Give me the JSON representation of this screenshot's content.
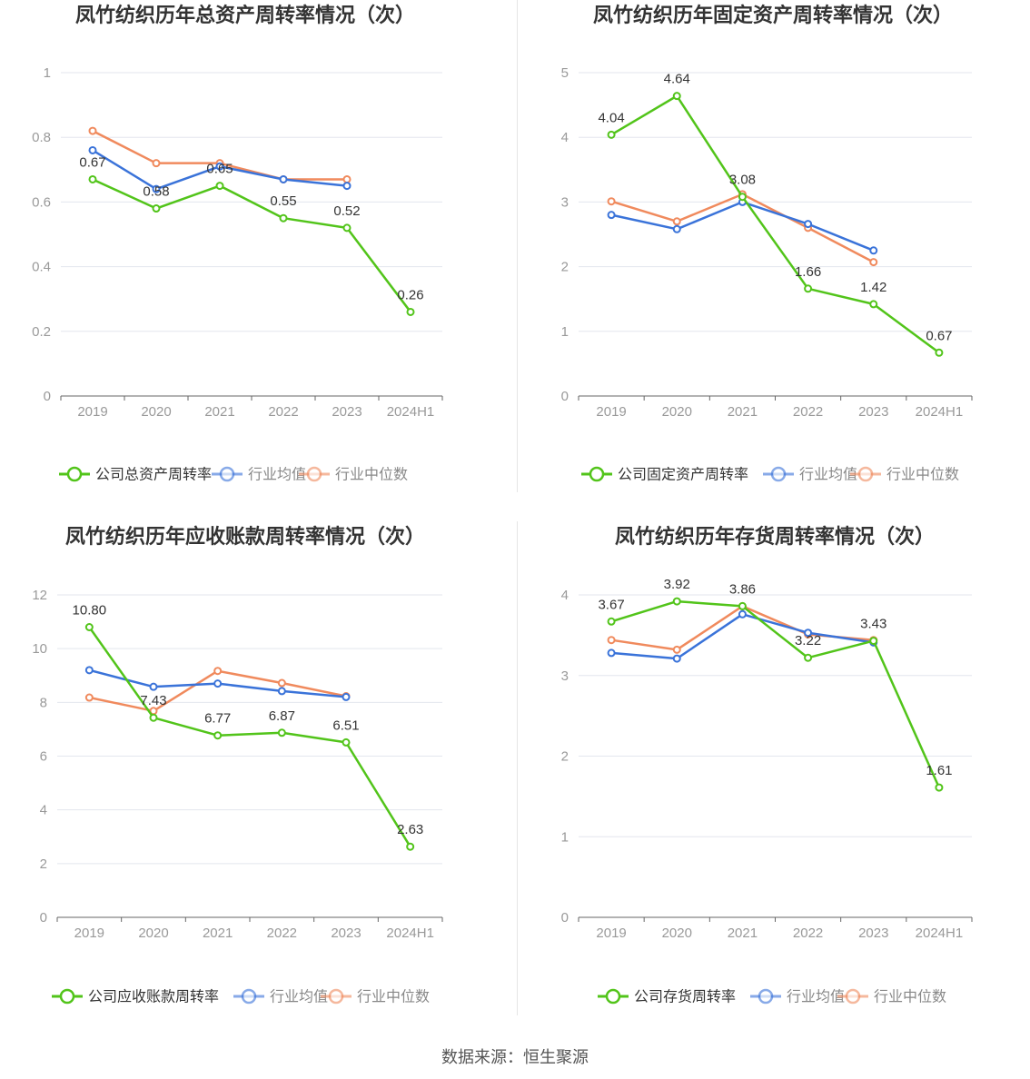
{
  "source_text": "数据来源：恒生聚源",
  "colors": {
    "company": "#52c41a",
    "avg": "#3a73d9",
    "median": "#f08a5d"
  },
  "legend_icon": "circle-line-marker",
  "chart_data": [
    {
      "type": "line",
      "title": "凤竹纺织历年总资产周转率情况（次）",
      "categories": [
        "2019",
        "2020",
        "2021",
        "2022",
        "2023",
        "2024H1"
      ],
      "ylim": [
        0,
        1
      ],
      "yticks": [
        0,
        0.2,
        0.4,
        0.6,
        0.8,
        1
      ],
      "ytick_labels": [
        "0",
        "0.2",
        "0.4",
        "0.6",
        "0.8",
        "1"
      ],
      "grid": true,
      "legend_position": "bottom",
      "series": [
        {
          "name": "公司总资产周转率",
          "values": [
            0.67,
            0.58,
            0.65,
            0.55,
            0.52,
            0.26
          ],
          "labels": [
            "0.67",
            "0.58",
            "0.65",
            "0.55",
            "0.52",
            "0.26"
          ]
        },
        {
          "name": "行业均值",
          "values": [
            0.76,
            0.64,
            0.71,
            0.67,
            0.65,
            null
          ]
        },
        {
          "name": "行业中位数",
          "values": [
            0.82,
            0.72,
            0.72,
            0.67,
            0.67,
            null
          ]
        }
      ]
    },
    {
      "type": "line",
      "title": "凤竹纺织历年固定资产周转率情况（次）",
      "categories": [
        "2019",
        "2020",
        "2021",
        "2022",
        "2023",
        "2024H1"
      ],
      "ylim": [
        0,
        5
      ],
      "yticks": [
        0,
        1,
        2,
        3,
        4,
        5
      ],
      "ytick_labels": [
        "0",
        "1",
        "2",
        "3",
        "4",
        "5"
      ],
      "grid": true,
      "legend_position": "bottom",
      "series": [
        {
          "name": "公司固定资产周转率",
          "values": [
            4.04,
            4.64,
            3.08,
            1.66,
            1.42,
            0.67
          ],
          "labels": [
            "4.04",
            "4.64",
            "3.08",
            "1.66",
            "1.42",
            "0.67"
          ]
        },
        {
          "name": "行业均值",
          "values": [
            2.8,
            2.58,
            3.0,
            2.66,
            2.25,
            null
          ]
        },
        {
          "name": "行业中位数",
          "values": [
            3.01,
            2.7,
            3.12,
            2.6,
            2.07,
            null
          ]
        }
      ]
    },
    {
      "type": "line",
      "title": "凤竹纺织历年应收账款周转率情况（次）",
      "categories": [
        "2019",
        "2020",
        "2021",
        "2022",
        "2023",
        "2024H1"
      ],
      "ylim": [
        0,
        12
      ],
      "yticks": [
        0,
        2,
        4,
        6,
        8,
        10,
        12
      ],
      "ytick_labels": [
        "0",
        "2",
        "4",
        "6",
        "8",
        "10",
        "12"
      ],
      "grid": true,
      "legend_position": "bottom",
      "series": [
        {
          "name": "公司应收账款周转率",
          "values": [
            10.8,
            7.43,
            6.77,
            6.87,
            6.51,
            2.63
          ],
          "labels": [
            "10.80",
            "7.43",
            "6.77",
            "6.87",
            "6.51",
            "2.63"
          ]
        },
        {
          "name": "行业均值",
          "values": [
            9.2,
            8.58,
            8.7,
            8.42,
            8.2,
            null
          ]
        },
        {
          "name": "行业中位数",
          "values": [
            8.18,
            7.68,
            9.17,
            8.72,
            8.23,
            null
          ]
        }
      ]
    },
    {
      "type": "line",
      "title": "凤竹纺织历年存货周转率情况（次）",
      "categories": [
        "2019",
        "2020",
        "2021",
        "2022",
        "2023",
        "2024H1"
      ],
      "ylim": [
        0,
        4
      ],
      "yticks": [
        0,
        1,
        2,
        3,
        4
      ],
      "ytick_labels": [
        "0",
        "1",
        "2",
        "3",
        "4"
      ],
      "grid": true,
      "legend_position": "bottom",
      "series": [
        {
          "name": "公司存货周转率",
          "values": [
            3.67,
            3.92,
            3.86,
            3.22,
            3.43,
            1.61
          ],
          "labels": [
            "3.67",
            "3.92",
            "3.86",
            "3.22",
            "3.43",
            "1.61"
          ]
        },
        {
          "name": "行业均值",
          "values": [
            3.28,
            3.21,
            3.76,
            3.53,
            3.41,
            null
          ]
        },
        {
          "name": "行业中位数",
          "values": [
            3.44,
            3.32,
            3.86,
            3.51,
            3.44,
            null
          ]
        }
      ]
    }
  ]
}
